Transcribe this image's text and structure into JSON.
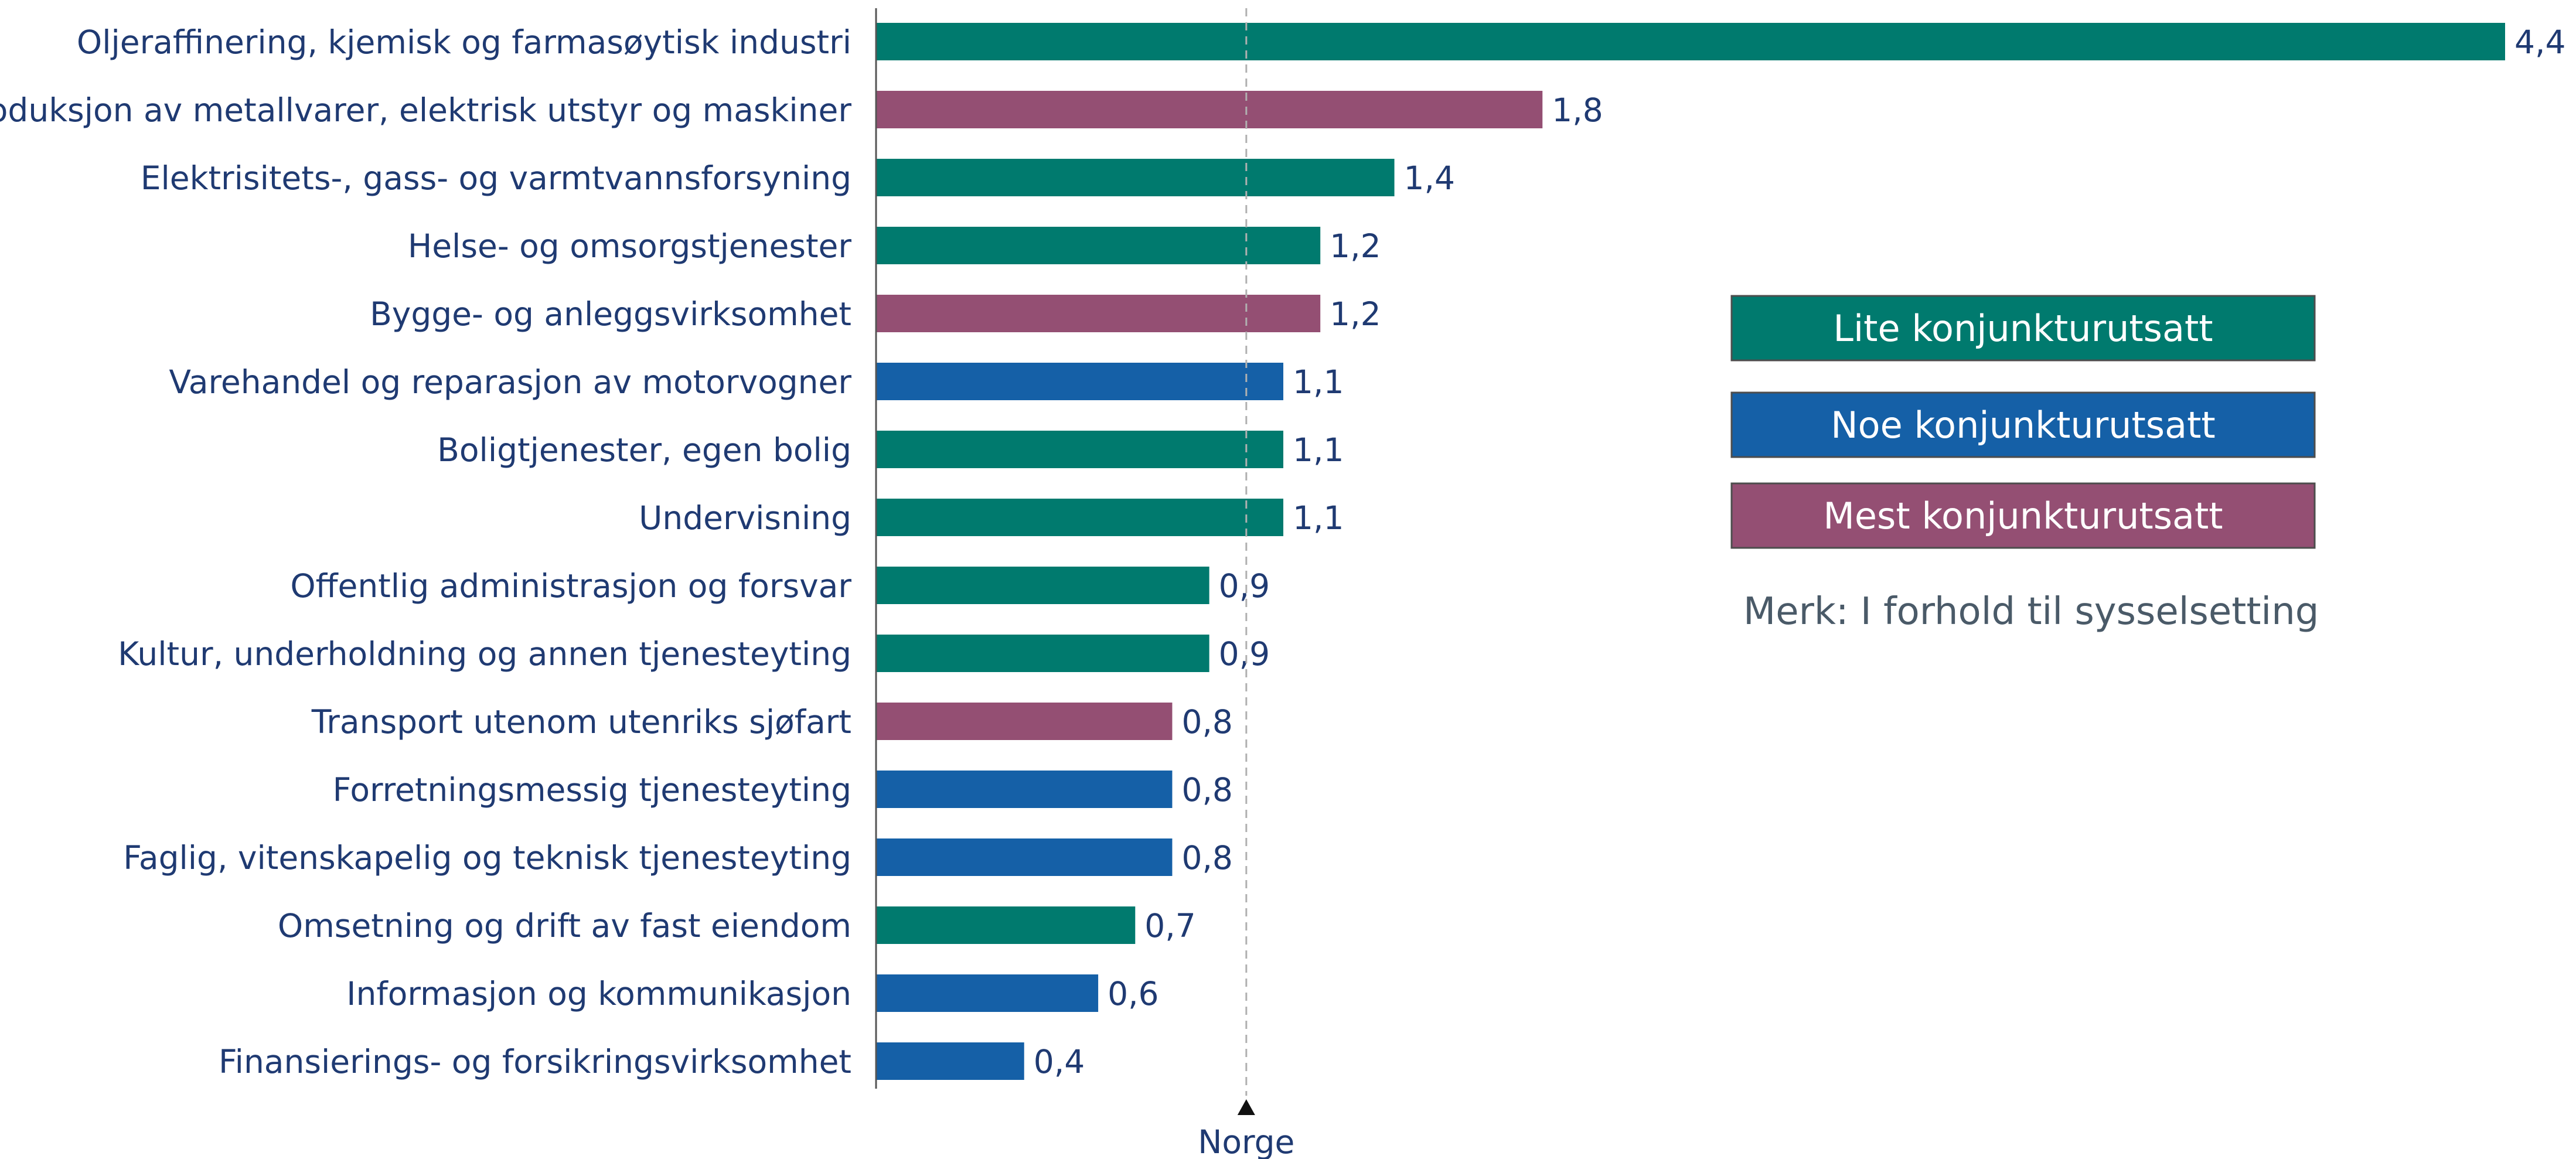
{
  "chart_data": {
    "type": "bar",
    "orientation": "horizontal",
    "categories": [
      "Oljeraffinering, kjemisk og farmasøytisk industri",
      "Produksjon av metallvarer, elektrisk utstyr og maskiner",
      "Elektrisitets-, gass- og varmtvannsforsyning",
      "Helse- og omsorgstjenester",
      "Bygge- og anleggsvirksomhet",
      "Varehandel og reparasjon av motorvogner",
      "Boligtjenester, egen bolig",
      "Undervisning",
      "Offentlig administrasjon og forsvar",
      "Kultur, underholdning og annen tjenesteyting",
      "Transport utenom utenriks sjøfart",
      "Forretningsmessig tjenesteyting",
      "Faglig, vitenskapelig og teknisk tjenesteyting",
      "Omsetning og drift av fast eiendom",
      "Informasjon og kommunikasjon",
      "Finansierings- og forsikringsvirksomhet"
    ],
    "values": [
      4.4,
      1.8,
      1.4,
      1.2,
      1.2,
      1.1,
      1.1,
      1.1,
      0.9,
      0.9,
      0.8,
      0.8,
      0.8,
      0.7,
      0.6,
      0.4
    ],
    "value_labels": [
      "4,4",
      "1,8",
      "1,4",
      "1,2",
      "1,2",
      "1,1",
      "1,1",
      "1,1",
      "0,9",
      "0,9",
      "0,8",
      "0,8",
      "0,8",
      "0,7",
      "0,6",
      "0,4"
    ],
    "groups": [
      "lite",
      "mest",
      "lite",
      "lite",
      "mest",
      "noe",
      "lite",
      "lite",
      "lite",
      "lite",
      "mest",
      "noe",
      "noe",
      "lite",
      "noe",
      "noe"
    ],
    "xlim": [
      0,
      4.4
    ],
    "reference": {
      "label": "Norge",
      "value": 1.0
    },
    "title": "",
    "xlabel": "",
    "ylabel": "",
    "grid": false,
    "legend": {
      "placement": "right",
      "entries": [
        {
          "key": "lite",
          "label": "Lite konjunkturutsatt",
          "color": "#007a6e"
        },
        {
          "key": "noe",
          "label": "Noe konjunkturutsatt",
          "color": "#1560a7"
        },
        {
          "key": "mest",
          "label": "Mest konjunkturutsatt",
          "color": "#944f73"
        }
      ]
    },
    "note": "Merk: I forhold til sysselsetting"
  }
}
